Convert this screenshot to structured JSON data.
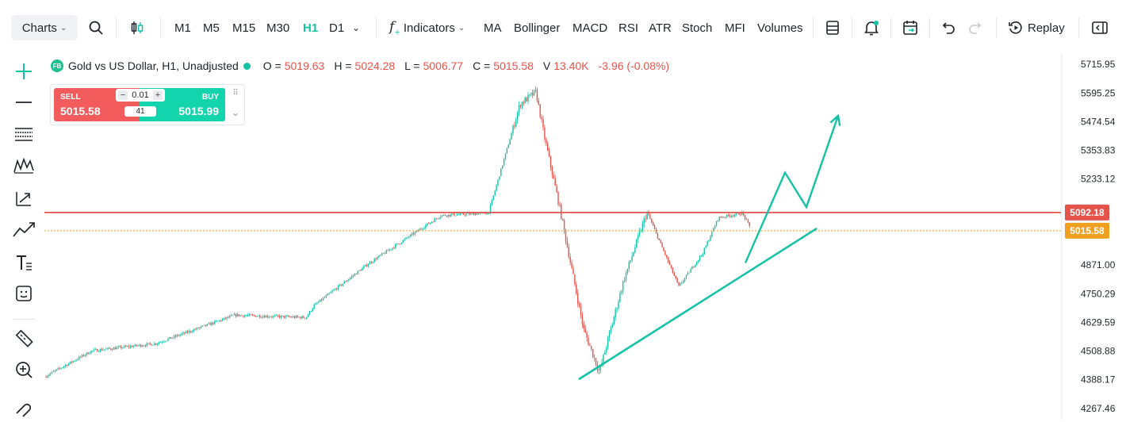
{
  "toolbar": {
    "charts_label": "Charts",
    "timeframes": [
      {
        "label": "M1",
        "active": false
      },
      {
        "label": "M5",
        "active": false
      },
      {
        "label": "M15",
        "active": false
      },
      {
        "label": "M30",
        "active": false
      },
      {
        "label": "H1",
        "active": true
      },
      {
        "label": "D1",
        "active": false
      }
    ],
    "indicators_label": "Indicators",
    "indicator_items": [
      "MA",
      "Bollinger",
      "MACD",
      "RSI",
      "ATR",
      "Stoch",
      "MFI",
      "Volumes"
    ],
    "replay_label": "Replay",
    "icons": [
      "search-icon",
      "candlestick-type-icon",
      "chevron-down-icon",
      "function-icon",
      "layout-icon",
      "alert-bell-icon",
      "calendar-icon",
      "undo-icon",
      "redo-icon",
      "replay-icon",
      "panel-toggle-icon"
    ]
  },
  "left_tools": [
    "crosshair-plus-icon",
    "horizontal-line-icon",
    "fib-levels-icon",
    "wave-pattern-icon",
    "trend-arrow-icon",
    "trendline-icon",
    "text-tool-icon",
    "emoji-icon",
    "ruler-icon",
    "zoom-icon",
    "magnet-icon"
  ],
  "header": {
    "logo": "FB",
    "symbol": "Gold vs US Dollar, H1, Unadjusted",
    "o_key": "O =",
    "o_val": "5019.63",
    "h_key": "H =",
    "h_val": "5024.28",
    "l_key": "L =",
    "l_val": "5006.77",
    "c_key": "C =",
    "c_val": "5015.58",
    "v_key": "V",
    "v_val": "13.40K",
    "change": "-3.96 (-0.08%)"
  },
  "trade": {
    "sell_label": "SELL",
    "sell_price": "5015.58",
    "buy_label": "BUY",
    "buy_price": "5015.99",
    "quantity": "0.01",
    "spread": "41"
  },
  "chart_data": {
    "type": "candlestick",
    "price_axis": [
      "5715.95",
      "5595.25",
      "5474.54",
      "5353.83",
      "5233.12",
      "4871.00",
      "4750.29",
      "4629.59",
      "4508.88",
      "4388.17",
      "4267.46"
    ],
    "y_range": [
      4220,
      5760
    ],
    "resistance_line": {
      "value": 5092.18,
      "label": "5092.18",
      "color": "#e5534b"
    },
    "current_price": {
      "value": 5015.58,
      "label": "5015.58",
      "color": "#f0a020"
    },
    "up_color": "#14c2a5",
    "down_color": "#e5534b",
    "key_points": [
      [
        0,
        4400
      ],
      [
        60,
        4510
      ],
      [
        140,
        4540
      ],
      [
        240,
        4660
      ],
      [
        330,
        4650
      ],
      [
        340,
        4700
      ],
      [
        410,
        4880
      ],
      [
        500,
        5080
      ],
      [
        560,
        5090
      ],
      [
        600,
        5550
      ],
      [
        620,
        5600
      ],
      [
        630,
        5420
      ],
      [
        650,
        5110
      ],
      [
        680,
        4600
      ],
      [
        700,
        4420
      ],
      [
        730,
        4800
      ],
      [
        760,
        5095
      ],
      [
        800,
        4780
      ],
      [
        830,
        4920
      ],
      [
        850,
        5070
      ],
      [
        880,
        5090
      ],
      [
        890,
        5030
      ]
    ],
    "trendline": {
      "from": [
        4390,
        730
      ],
      "to": [
        5025,
        1030
      ],
      "color": "#14c2a5"
    },
    "projection": {
      "points": [
        [
          940,
          4880
        ],
        [
          990,
          5260
        ],
        [
          1017,
          5115
        ],
        [
          1057,
          5500
        ]
      ],
      "color": "#14c2a5"
    }
  }
}
